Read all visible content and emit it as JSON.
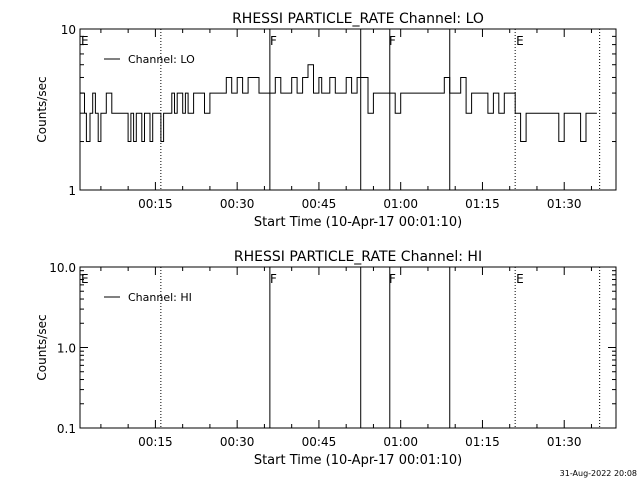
{
  "timestamp": "31-Aug-2022 20:08",
  "chart_data": [
    {
      "type": "line",
      "title": "RHESSI PARTICLE_RATE Channel: LO",
      "xlabel": "Start Time (10-Apr-17 00:01:10)",
      "ylabel": "Counts/sec",
      "yscale": "log",
      "xlim": [
        "00:01:10",
        "01:39:30"
      ],
      "ylim": [
        1,
        10
      ],
      "xticks": [
        "00:15",
        "00:30",
        "00:45",
        "01:00",
        "01:15",
        "01:30"
      ],
      "yticks": [
        "1",
        "10"
      ],
      "legend": "top-left",
      "series": [
        {
          "name": "Channel: LO",
          "x": [
            "00:01:10",
            "00:02:00",
            "00:02:20",
            "00:03:00",
            "00:03:30",
            "00:04:00",
            "00:04:30",
            "00:05:00",
            "00:05:30",
            "00:06:00",
            "00:07:00",
            "00:08:00",
            "00:09:00",
            "00:09:30",
            "00:10:00",
            "00:10:30",
            "00:11:00",
            "00:11:30",
            "00:12:00",
            "00:12:30",
            "00:13:00",
            "00:13:30",
            "00:14:00",
            "00:14:30",
            "00:15:00",
            "00:15:30",
            "00:16:00",
            "00:16:30",
            "00:17:00",
            "00:18:00",
            "00:18:30",
            "00:19:00",
            "00:20:00",
            "00:20:30",
            "00:21:00",
            "00:22:00",
            "00:23:00",
            "00:24:00",
            "00:25:00",
            "00:26:00",
            "00:27:00",
            "00:28:00",
            "00:29:00",
            "00:30:00",
            "00:31:00",
            "00:32:00",
            "00:33:00",
            "00:34:00",
            "00:35:00",
            "00:36:00",
            "00:37:00",
            "00:38:00",
            "00:39:00",
            "00:40:00",
            "00:41:00",
            "00:42:00",
            "00:43:00",
            "00:44:00",
            "00:45:00",
            "00:45:30",
            "00:46:00",
            "00:47:00",
            "00:48:00",
            "00:49:00",
            "00:50:00",
            "00:51:00",
            "00:52:00",
            "00:53:00",
            "00:54:00",
            "00:55:00",
            "00:56:00",
            "00:57:00",
            "00:58:00",
            "00:59:00",
            "01:00:00",
            "01:01:00",
            "01:02:00",
            "01:03:00",
            "01:04:00",
            "01:05:00",
            "01:06:00",
            "01:07:00",
            "01:08:00",
            "01:09:00",
            "01:10:00",
            "01:11:00",
            "01:12:00",
            "01:13:00",
            "01:14:00",
            "01:15:00",
            "01:16:00",
            "01:17:00",
            "01:18:00",
            "01:19:00",
            "01:20:00",
            "01:21:00",
            "01:22:00",
            "01:23:00",
            "01:24:00",
            "01:25:00",
            "01:26:00",
            "01:27:00",
            "01:28:00",
            "01:29:00",
            "01:30:00",
            "01:31:00",
            "01:32:00",
            "01:33:00",
            "01:34:00",
            "01:35:00",
            "01:36:00"
          ],
          "y": [
            4,
            3,
            2,
            3,
            4,
            3,
            2,
            3,
            3,
            4,
            3,
            3,
            3,
            3,
            2,
            3,
            2,
            3,
            3,
            2,
            3,
            3,
            2,
            3,
            3,
            3,
            2,
            3,
            3,
            4,
            3,
            4,
            3,
            4,
            3,
            4,
            4,
            3,
            4,
            4,
            4,
            5,
            4,
            5,
            4,
            5,
            5,
            4,
            4,
            4,
            5,
            4,
            4,
            5,
            4,
            5,
            6,
            4,
            5,
            4,
            4,
            5,
            4,
            4,
            5,
            4,
            5,
            5,
            3,
            4,
            4,
            4,
            4,
            3,
            4,
            4,
            4,
            4,
            4,
            4,
            4,
            4,
            5,
            4,
            4,
            5,
            3,
            4,
            4,
            4,
            3,
            4,
            3,
            4,
            4,
            3,
            2,
            3,
            3,
            3,
            3,
            3,
            3,
            2,
            3,
            3,
            3,
            2,
            3,
            3,
            3
          ],
          "color": "#000000"
        }
      ],
      "annotations": [
        {
          "label": "E",
          "x": "00:01:10"
        },
        {
          "label": "F",
          "x": "00:35:50"
        },
        {
          "label": "F",
          "x": "00:57:40"
        },
        {
          "label": "E",
          "x": "01:21:00"
        }
      ],
      "vlines_solid": [
        "00:36:00",
        "00:52:40",
        "00:58:00",
        "01:09:00"
      ],
      "vlines_dotted": [
        "00:16:00",
        "01:21:00",
        "01:36:30"
      ]
    },
    {
      "type": "line",
      "title": "RHESSI PARTICLE_RATE Channel: HI",
      "xlabel": "Start Time (10-Apr-17 00:01:10)",
      "ylabel": "Counts/sec",
      "yscale": "log",
      "xlim": [
        "00:01:10",
        "01:39:30"
      ],
      "ylim": [
        0.1,
        10
      ],
      "xticks": [
        "00:15",
        "00:30",
        "00:45",
        "01:00",
        "01:15",
        "01:30"
      ],
      "yticks": [
        "0.1",
        "1.0",
        "10.0"
      ],
      "legend": "top-left",
      "series": [
        {
          "name": "Channel: HI",
          "x": [],
          "y": [],
          "color": "#000000"
        }
      ],
      "annotations": [
        {
          "label": "E",
          "x": "00:01:10"
        },
        {
          "label": "F",
          "x": "00:35:50"
        },
        {
          "label": "F",
          "x": "00:57:40"
        },
        {
          "label": "E",
          "x": "01:21:00"
        }
      ],
      "vlines_solid": [
        "00:36:00",
        "00:52:40",
        "00:58:00",
        "01:09:00"
      ],
      "vlines_dotted": [
        "00:16:00",
        "01:21:00",
        "01:36:30"
      ]
    }
  ]
}
